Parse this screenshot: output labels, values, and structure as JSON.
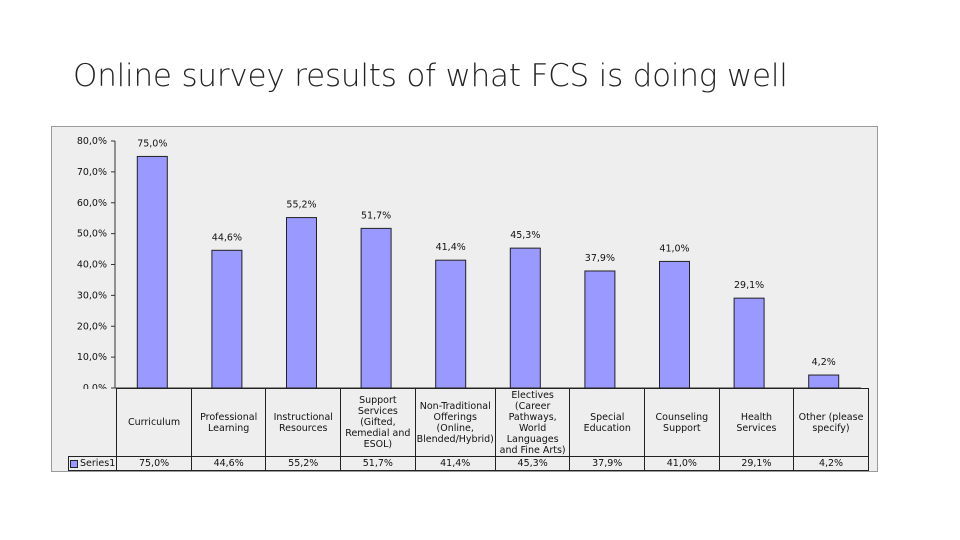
{
  "slide": {
    "title": "Online survey results of what FCS is doing well"
  },
  "chart_data": {
    "type": "bar",
    "title": "",
    "xlabel": "",
    "ylabel": "",
    "ylim": [
      0,
      80
    ],
    "y_ticks": [
      "0,0%",
      "10,0%",
      "20,0%",
      "30,0%",
      "40,0%",
      "50,0%",
      "60,0%",
      "70,0%",
      "80,0%"
    ],
    "y_tick_values": [
      0,
      10,
      20,
      30,
      40,
      50,
      60,
      70,
      80
    ],
    "grid": false,
    "legend": "data table row",
    "bar_color": "#9999ff",
    "categories": [
      "Curriculum",
      "Professional Learning",
      "Instructional Resources",
      "Support Services (Gifted, Remedial and ESOL)",
      "Non-Traditional Offerings (Online, Blended/Hybrid)",
      "Electives (Career Pathways, World Languages and Fine Arts)",
      "Special Education",
      "Counseling Support",
      "Health Services",
      "Other (please specify)"
    ],
    "series": [
      {
        "name": "Series1",
        "values": [
          75.0,
          44.6,
          55.2,
          51.7,
          41.4,
          45.3,
          37.9,
          41.0,
          29.1,
          4.2
        ],
        "labels": [
          "75,0%",
          "44,6%",
          "55,2%",
          "51,7%",
          "41,4%",
          "45,3%",
          "37,9%",
          "41,0%",
          "29,1%",
          "4,2%"
        ]
      }
    ]
  }
}
